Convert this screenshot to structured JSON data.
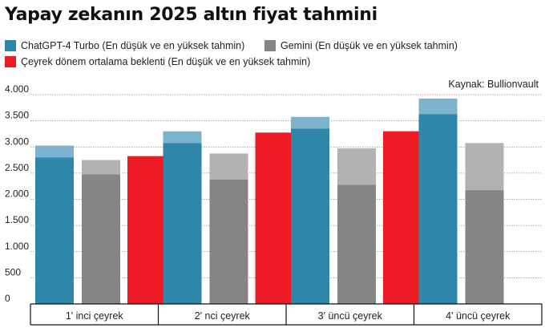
{
  "title": "Yapay zekanın 2025 altın fiyat tahmini",
  "source": "Kaynak: Bullionvault",
  "legend": [
    {
      "label": "ChatGPT-4 Turbo (En düşük ve en yüksek tahmin)",
      "color": "#2e87a9"
    },
    {
      "label": "Gemini (En düşük ve en yüksek tahmin)",
      "color": "#858585"
    },
    {
      "label": "Çeyrek dönem  ortalama beklenti (En düşük ve en yüksek tahmin)",
      "color": "#ed1c24"
    }
  ],
  "colors": {
    "chatgpt_low": "#2e87a9",
    "chatgpt_high": "#7db3cc",
    "gemini_low": "#858585",
    "gemini_high": "#b2b2b2",
    "average": "#ed1c24"
  },
  "chart_data": {
    "type": "bar",
    "title": "Yapay zekanın 2025 altın fiyat tahmini",
    "categories": [
      "1' inci çeyrek",
      "2' nci çeyrek",
      "3' üncü çeyrek",
      "4' üncü çeyrek"
    ],
    "series": [
      {
        "name": "ChatGPT-4 Turbo (En düşük ve en yüksek tahmin)",
        "low": [
          2800,
          3075,
          3350,
          3625
        ],
        "high": [
          3025,
          3300,
          3575,
          3925
        ]
      },
      {
        "name": "Gemini (En düşük ve en yüksek tahmin)",
        "low": [
          2475,
          2375,
          2275,
          2175
        ],
        "high": [
          2750,
          2875,
          2975,
          3075
        ]
      },
      {
        "name": "Çeyrek dönem  ortalama beklenti (En düşük ve en yüksek tahmin)",
        "values": [
          2825,
          3275,
          3300,
          null
        ]
      }
    ],
    "ylim": [
      0,
      4000
    ],
    "yticks": [
      0,
      500,
      1000,
      1500,
      2000,
      2500,
      3000,
      3500,
      4000
    ],
    "ytick_labels": [
      "0",
      "500",
      "1.000",
      "1.500",
      "2.000",
      "2.500",
      "3.000",
      "3.500",
      "4.000"
    ],
    "grid": true
  }
}
